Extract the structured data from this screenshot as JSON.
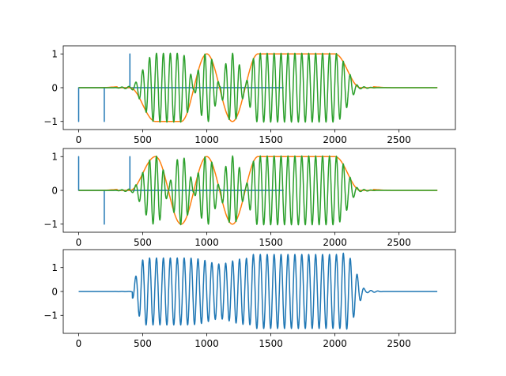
{
  "chart_data": [
    {
      "type": "line",
      "xlim": [
        -120,
        2940
      ],
      "ylim": [
        -1.24,
        1.24
      ],
      "xticks": [
        0,
        500,
        1000,
        1500,
        2000,
        2500
      ],
      "xtick_labels": [
        "0",
        "500",
        "1000",
        "1500",
        "2000",
        "2500"
      ],
      "yticks": [
        -1,
        0,
        1
      ],
      "ytick_labels": [
        "−1",
        "0",
        "1"
      ],
      "grid": false,
      "series": [
        {
          "color": "#1f77b4",
          "kind": "impulses",
          "x_range": [
            0,
            1600
          ],
          "impulses": [
            [
              0,
              -1
            ],
            [
              200,
              -1
            ],
            [
              400,
              1
            ]
          ]
        },
        {
          "color": "#ff7f0e",
          "kind": "envelope",
          "x_range": [
            0,
            2800
          ],
          "knots": [
            [
              0,
              0
            ],
            [
              200,
              0
            ],
            [
              400,
              0
            ],
            [
              600,
              -1
            ],
            [
              800,
              -1
            ],
            [
              1000,
              1
            ],
            [
              1200,
              -1
            ],
            [
              1400,
              1
            ],
            [
              1600,
              1
            ],
            [
              1800,
              1
            ],
            [
              2000,
              1
            ],
            [
              2200,
              0
            ],
            [
              2400,
              0
            ],
            [
              2600,
              0
            ],
            [
              2800,
              0
            ]
          ]
        },
        {
          "color": "#2ca02c",
          "kind": "modulated",
          "x_range": [
            0,
            2800
          ],
          "carrier_period": 54
        }
      ]
    },
    {
      "type": "line",
      "xlim": [
        -120,
        2940
      ],
      "ylim": [
        -1.24,
        1.24
      ],
      "xticks": [
        0,
        500,
        1000,
        1500,
        2000,
        2500
      ],
      "xtick_labels": [
        "0",
        "500",
        "1000",
        "1500",
        "2000",
        "2500"
      ],
      "yticks": [
        -1,
        0,
        1
      ],
      "ytick_labels": [
        "−1",
        "0",
        "1"
      ],
      "grid": false,
      "series": [
        {
          "color": "#1f77b4",
          "kind": "impulses",
          "x_range": [
            0,
            1600
          ],
          "impulses": [
            [
              0,
              1
            ],
            [
              200,
              -1
            ],
            [
              400,
              1
            ]
          ]
        },
        {
          "color": "#ff7f0e",
          "kind": "envelope",
          "x_range": [
            0,
            2800
          ],
          "knots": [
            [
              0,
              0
            ],
            [
              200,
              0
            ],
            [
              400,
              0
            ],
            [
              600,
              1
            ],
            [
              800,
              -1
            ],
            [
              1000,
              1
            ],
            [
              1200,
              -1
            ],
            [
              1400,
              1
            ],
            [
              1600,
              1
            ],
            [
              1800,
              1
            ],
            [
              2000,
              1
            ],
            [
              2200,
              0
            ],
            [
              2400,
              0
            ],
            [
              2600,
              0
            ],
            [
              2800,
              0
            ]
          ]
        },
        {
          "color": "#2ca02c",
          "kind": "modulated",
          "x_range": [
            0,
            2800
          ],
          "carrier_period": 54
        }
      ]
    },
    {
      "type": "line",
      "xlim": [
        -120,
        2940
      ],
      "ylim": [
        -1.75,
        1.75
      ],
      "xticks": [
        0,
        500,
        1000,
        1500,
        2000,
        2500
      ],
      "xtick_labels": [
        "0",
        "500",
        "1000",
        "1500",
        "2000",
        "2500"
      ],
      "yticks": [
        -1,
        0,
        1
      ],
      "ytick_labels": [
        "−1",
        "0",
        "1"
      ],
      "grid": false,
      "series": [
        {
          "color": "#1f77b4",
          "kind": "difference",
          "x_range": [
            0,
            2800
          ],
          "carrier_period": 54,
          "peak": 1.55
        }
      ]
    }
  ]
}
